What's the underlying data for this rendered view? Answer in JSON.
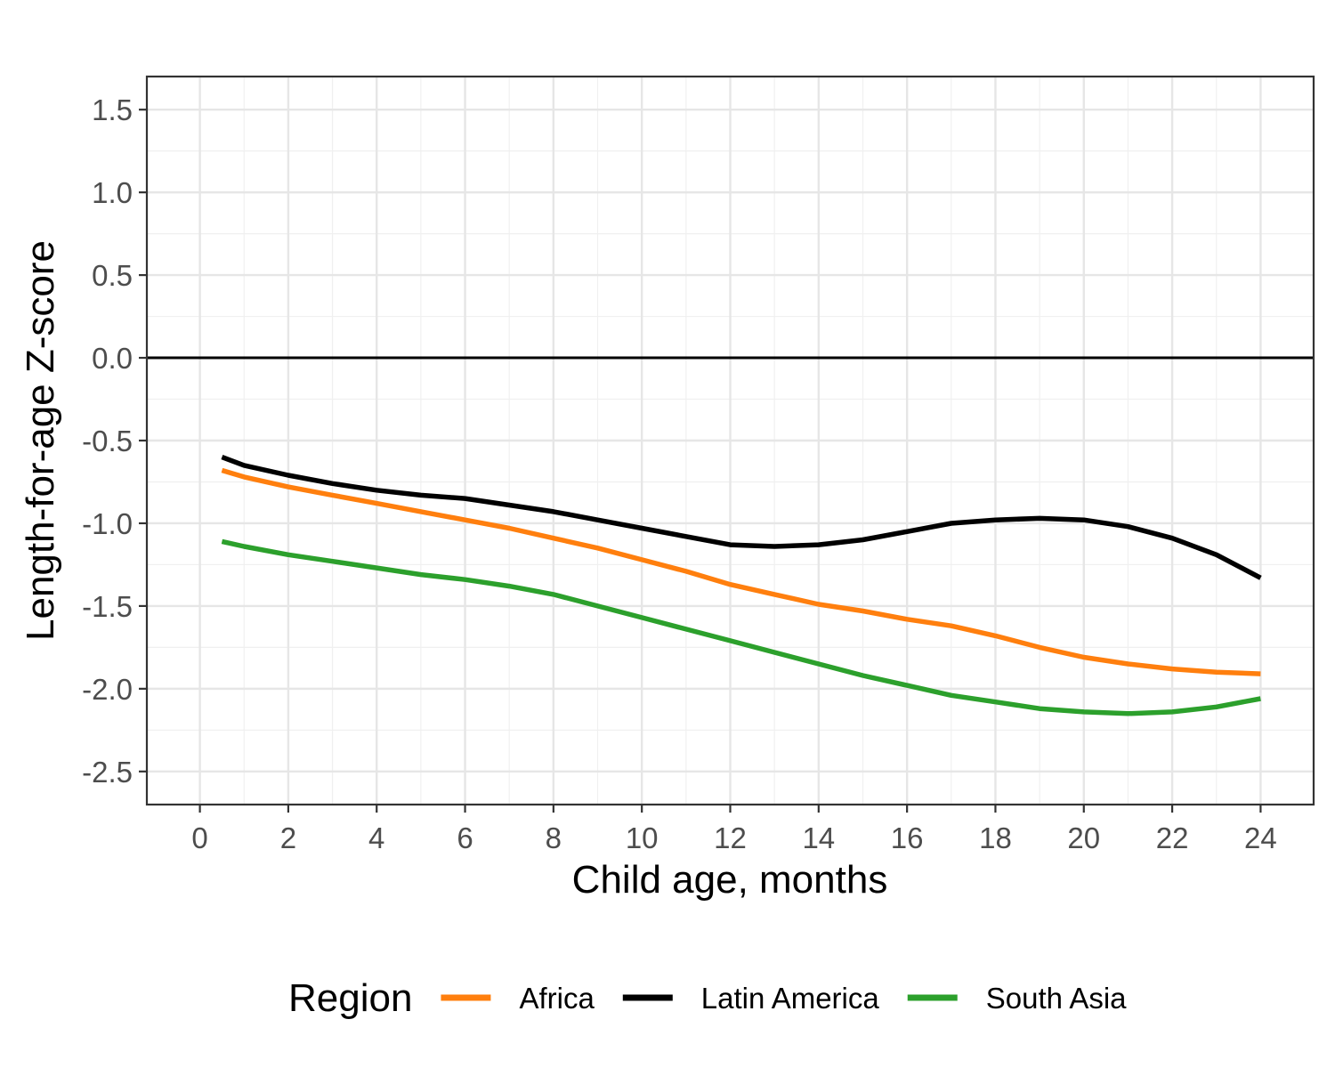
{
  "chart_data": {
    "type": "line",
    "xlabel": "Child age, months",
    "ylabel": "Length-for-age Z-score",
    "xlim": [
      -1.2,
      25.2
    ],
    "ylim": [
      -2.7,
      1.7
    ],
    "x_ticks": [
      0,
      2,
      4,
      6,
      8,
      10,
      12,
      14,
      16,
      18,
      20,
      22,
      24
    ],
    "x_tick_labels": [
      "0",
      "2",
      "4",
      "6",
      "8",
      "10",
      "12",
      "14",
      "16",
      "18",
      "20",
      "22",
      "24"
    ],
    "y_ticks": [
      1.5,
      1.0,
      0.5,
      0.0,
      -0.5,
      -1.0,
      -1.5,
      -2.0,
      -2.5
    ],
    "y_tick_labels": [
      "1.5",
      "1.0",
      "0.5",
      "0.0",
      "-0.5",
      "-1.0",
      "-1.5",
      "-2.0",
      "-2.5"
    ],
    "grid": true,
    "reference_line_y": 0,
    "legend": {
      "title": "Region",
      "position": "bottom"
    },
    "series": [
      {
        "name": "Africa",
        "color": "#ff7f0e",
        "x": [
          0.5,
          1,
          2,
          3,
          4,
          5,
          6,
          7,
          8,
          9,
          10,
          11,
          12,
          13,
          14,
          15,
          16,
          17,
          18,
          19,
          20,
          21,
          22,
          23,
          24
        ],
        "y": [
          -0.68,
          -0.72,
          -0.78,
          -0.83,
          -0.88,
          -0.93,
          -0.98,
          -1.03,
          -1.09,
          -1.15,
          -1.22,
          -1.29,
          -1.37,
          -1.43,
          -1.49,
          -1.53,
          -1.58,
          -1.62,
          -1.68,
          -1.75,
          -1.81,
          -1.85,
          -1.88,
          -1.9,
          -1.91
        ]
      },
      {
        "name": "Latin America",
        "color": "#000000",
        "x": [
          0.5,
          1,
          2,
          3,
          4,
          5,
          6,
          7,
          8,
          9,
          10,
          11,
          12,
          13,
          14,
          15,
          16,
          17,
          18,
          19,
          20,
          21,
          22,
          23,
          24
        ],
        "y": [
          -0.6,
          -0.65,
          -0.71,
          -0.76,
          -0.8,
          -0.83,
          -0.85,
          -0.89,
          -0.93,
          -0.98,
          -1.03,
          -1.08,
          -1.13,
          -1.14,
          -1.13,
          -1.1,
          -1.05,
          -1.0,
          -0.98,
          -0.97,
          -0.98,
          -1.02,
          -1.09,
          -1.19,
          -1.33
        ]
      },
      {
        "name": "South Asia",
        "color": "#2ca02c",
        "x": [
          0.5,
          1,
          2,
          3,
          4,
          5,
          6,
          7,
          8,
          9,
          10,
          11,
          12,
          13,
          14,
          15,
          16,
          17,
          18,
          19,
          20,
          21,
          22,
          23,
          24
        ],
        "y": [
          -1.11,
          -1.14,
          -1.19,
          -1.23,
          -1.27,
          -1.31,
          -1.34,
          -1.38,
          -1.43,
          -1.5,
          -1.57,
          -1.64,
          -1.71,
          -1.78,
          -1.85,
          -1.92,
          -1.98,
          -2.04,
          -2.08,
          -2.12,
          -2.14,
          -2.15,
          -2.14,
          -2.11,
          -2.06
        ]
      }
    ]
  }
}
